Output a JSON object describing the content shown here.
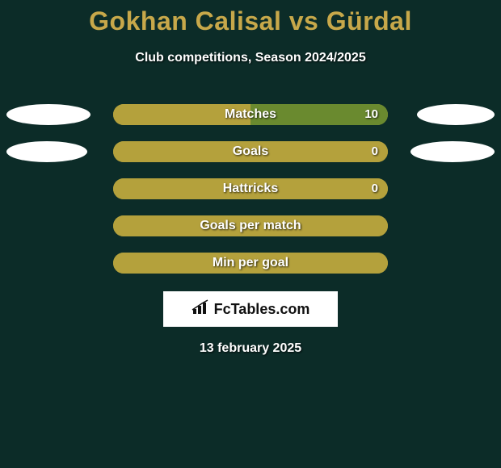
{
  "background_color": "#0c2c28",
  "title": {
    "text": "Gokhan Calisal vs Gürdal",
    "color": "#c7a84a",
    "fontsize": 32,
    "fontweight": 800
  },
  "subtitle": {
    "text": "Club competitions, Season 2024/2025",
    "fontsize": 16
  },
  "bars": {
    "track_width": 340,
    "track_height": 26,
    "label_fontsize": 16,
    "fill_color_left": "#b4a13c",
    "fill_color_right": "#b4a13c",
    "track_left_color": "#b4a13c",
    "track_right_color": "#b4a13c"
  },
  "rows": [
    {
      "label": "Matches",
      "left_oval_width": 104,
      "right_oval_width": 96,
      "left_fill_pct": 50,
      "right_fill_pct": 50,
      "value_right": "10",
      "left_fill_color": "#b4a13c",
      "right_fill_color": "#6a8a2f"
    },
    {
      "label": "Goals",
      "left_oval_width": 100,
      "right_oval_width": 104,
      "left_fill_pct": 50,
      "right_fill_pct": 50,
      "value_right": "0",
      "left_fill_color": "#b4a13c",
      "right_fill_color": "#b4a13c"
    },
    {
      "label": "Hattricks",
      "left_oval_width": 0,
      "right_oval_width": 0,
      "left_fill_pct": 50,
      "right_fill_pct": 50,
      "value_right": "0",
      "left_fill_color": "#b4a13c",
      "right_fill_color": "#b4a13c"
    },
    {
      "label": "Goals per match",
      "left_oval_width": 0,
      "right_oval_width": 0,
      "left_fill_pct": 50,
      "right_fill_pct": 50,
      "value_right": "",
      "left_fill_color": "#b4a13c",
      "right_fill_color": "#b4a13c"
    },
    {
      "label": "Min per goal",
      "left_oval_width": 0,
      "right_oval_width": 0,
      "left_fill_pct": 50,
      "right_fill_pct": 50,
      "value_right": "",
      "left_fill_color": "#b4a13c",
      "right_fill_color": "#b4a13c"
    }
  ],
  "logo": {
    "text": "FcTables.com",
    "icon_color": "#111111"
  },
  "date": "13 february 2025"
}
